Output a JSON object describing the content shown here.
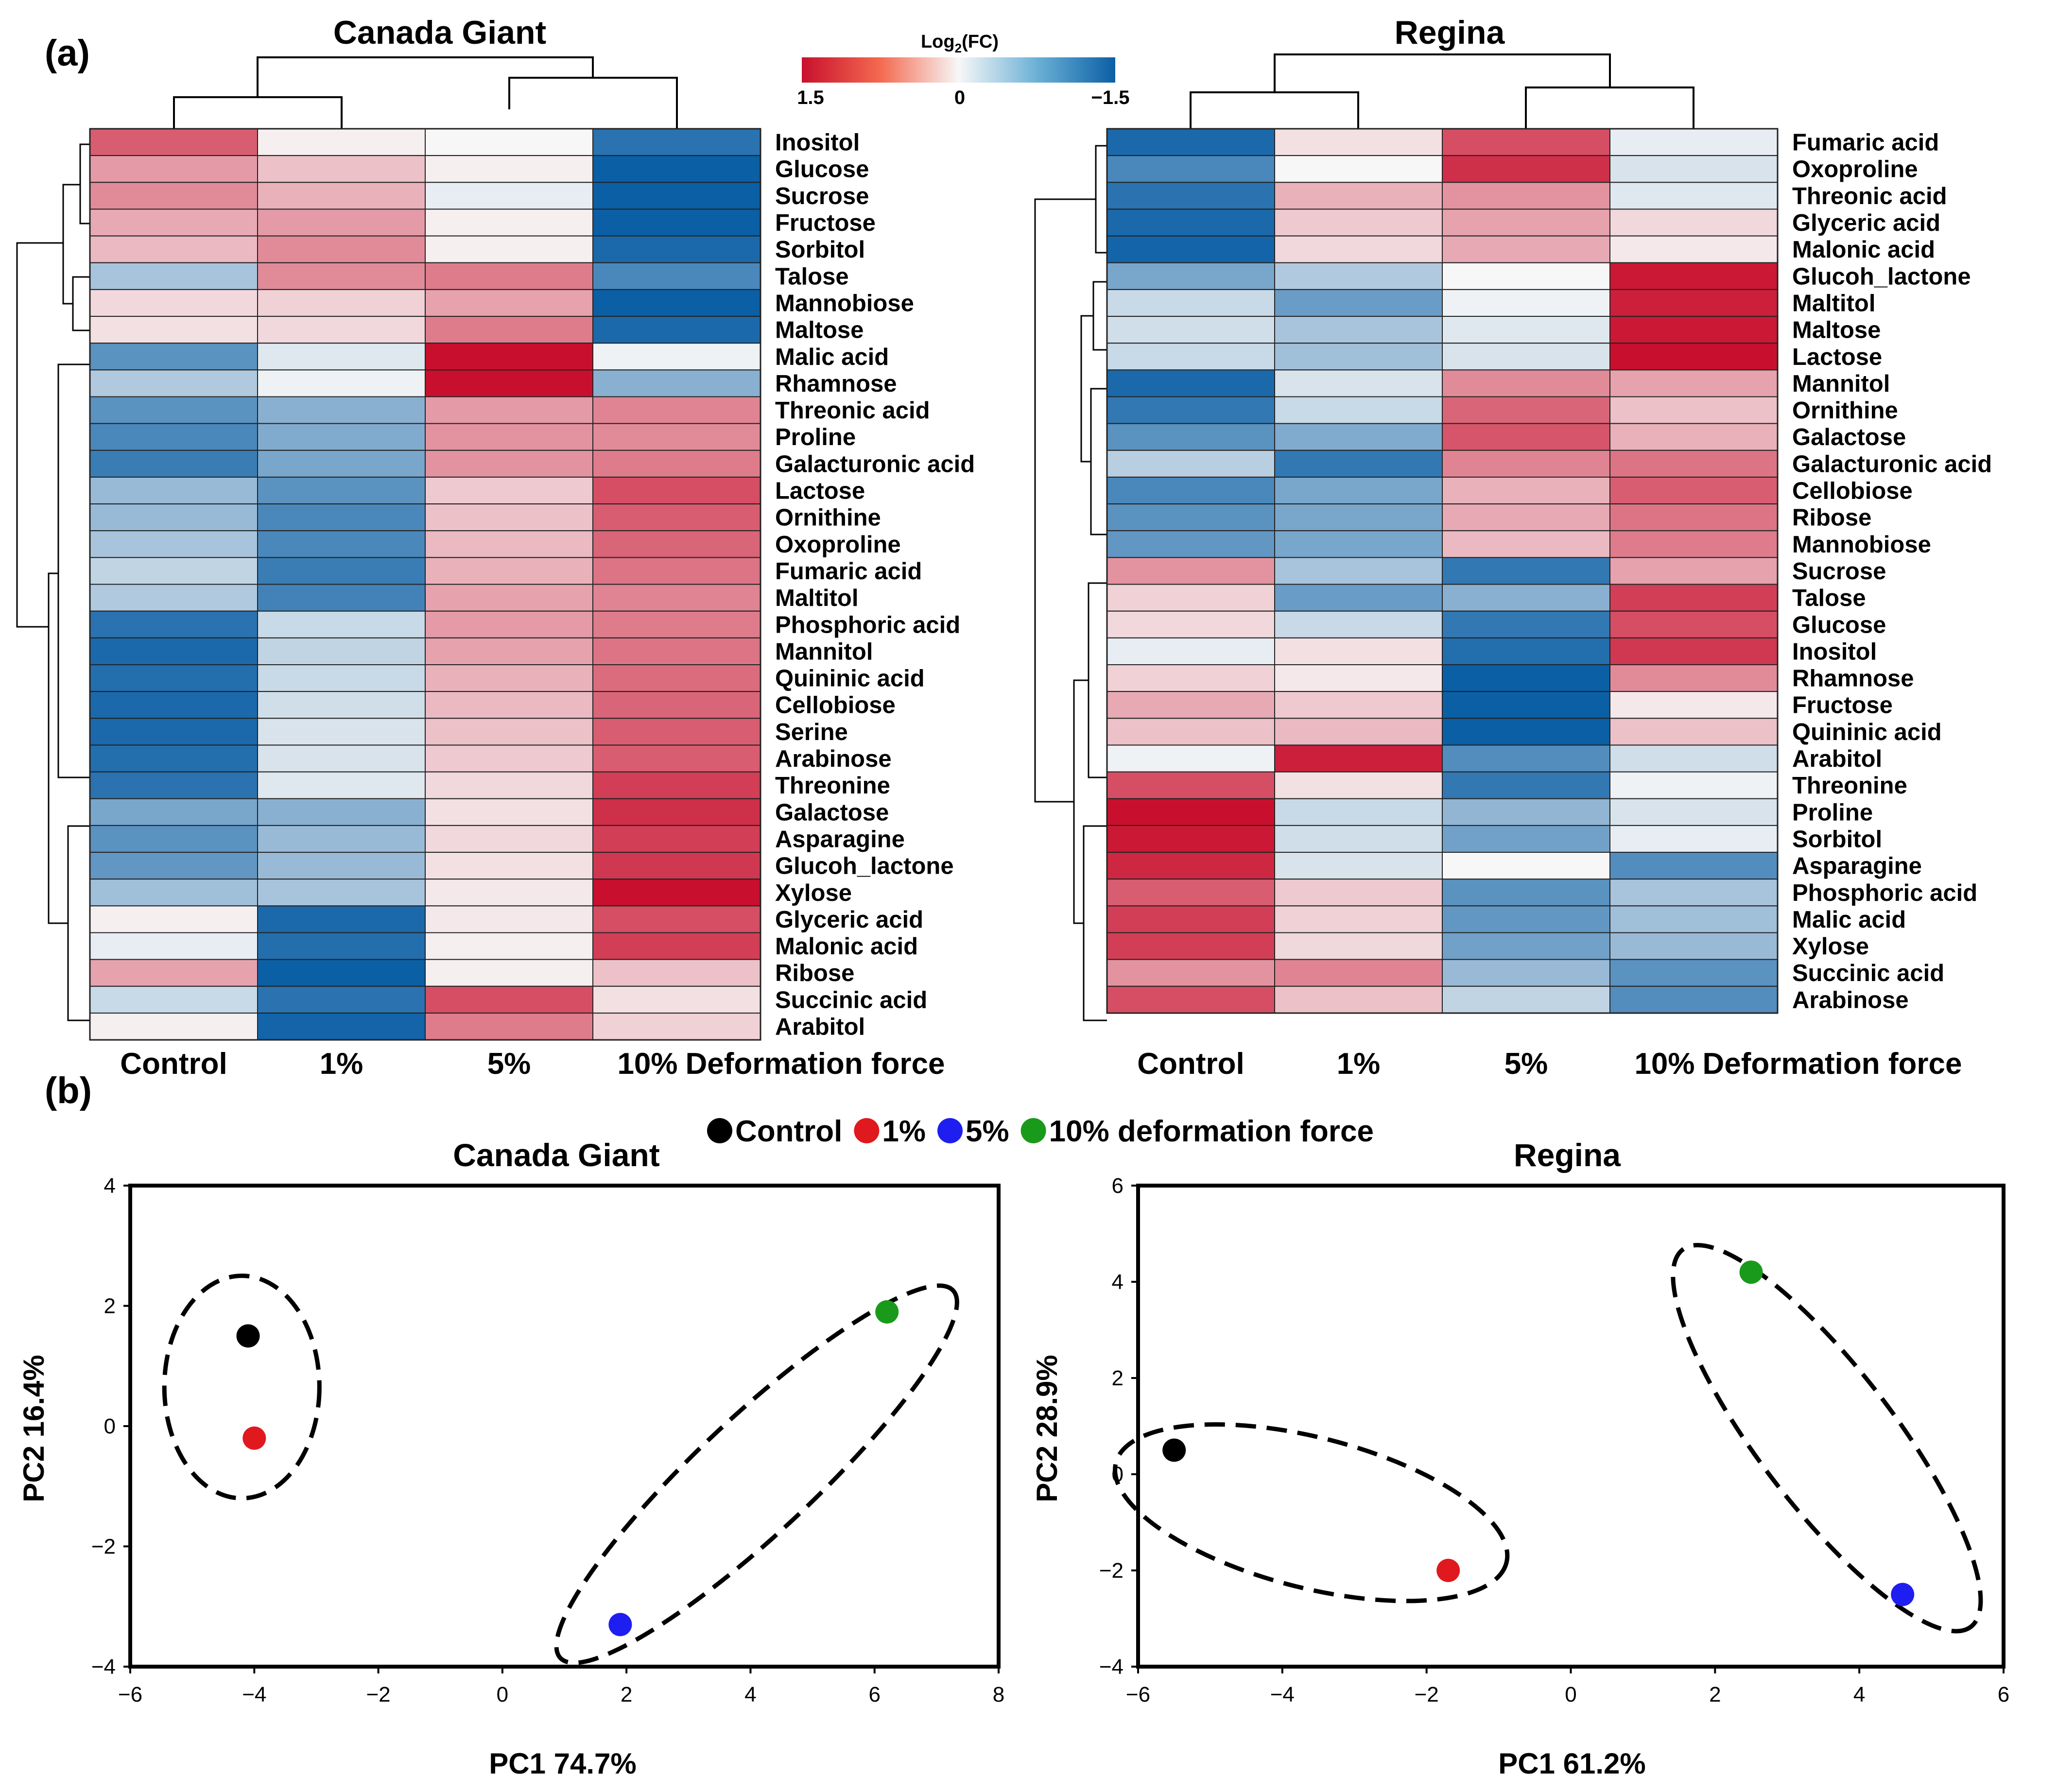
{
  "figure": {
    "panel_a_label": "(a)",
    "panel_b_label": "(b)",
    "colors": {
      "high": "#c8102e",
      "mid": "#f7f7f7",
      "low": "#0b5fa5"
    }
  },
  "chart_data": [
    {
      "type": "heatmap",
      "id": "heatmap_canada_giant",
      "title": "Canada Giant",
      "value_label": "Log2(FC)",
      "columns": [
        "Control",
        "1%",
        "5%",
        "10%"
      ],
      "x_axis_suffix": "Deformation force",
      "color_range": [
        1.5,
        -1.5
      ],
      "rows": [
        {
          "label": "Inositol",
          "values": [
            1.0,
            0.05,
            0.0,
            -1.3
          ]
        },
        {
          "label": "Glucose",
          "values": [
            0.6,
            0.35,
            0.05,
            -1.5
          ]
        },
        {
          "label": "Sucrose",
          "values": [
            0.7,
            0.45,
            -0.1,
            -1.5
          ]
        },
        {
          "label": "Fructose",
          "values": [
            0.5,
            0.6,
            0.05,
            -1.5
          ]
        },
        {
          "label": "Sorbitol",
          "values": [
            0.4,
            0.7,
            0.05,
            -1.4
          ]
        },
        {
          "label": "Talose",
          "values": [
            -0.5,
            0.7,
            0.8,
            -1.1
          ]
        },
        {
          "label": "Mannobiose",
          "values": [
            0.2,
            0.25,
            0.55,
            -1.5
          ]
        },
        {
          "label": "Maltose",
          "values": [
            0.15,
            0.2,
            0.8,
            -1.4
          ]
        },
        {
          "label": "Malic acid",
          "values": [
            -1.0,
            -0.15,
            1.5,
            -0.05
          ]
        },
        {
          "label": "Rhamnose",
          "values": [
            -0.45,
            -0.05,
            1.5,
            -0.7
          ]
        },
        {
          "label": "Threonic acid",
          "values": [
            -1.0,
            -0.7,
            0.6,
            0.75
          ]
        },
        {
          "label": "Proline",
          "values": [
            -1.1,
            -0.75,
            0.65,
            0.7
          ]
        },
        {
          "label": "Galacturonic acid",
          "values": [
            -1.2,
            -0.8,
            0.65,
            0.8
          ]
        },
        {
          "label": "Lactose",
          "values": [
            -0.6,
            -1.0,
            0.3,
            1.1
          ]
        },
        {
          "label": "Ornithine",
          "values": [
            -0.6,
            -1.1,
            0.35,
            1.0
          ]
        },
        {
          "label": "Oxoproline",
          "values": [
            -0.5,
            -1.1,
            0.4,
            0.95
          ]
        },
        {
          "label": "Fumaric acid",
          "values": [
            -0.35,
            -1.2,
            0.45,
            0.85
          ]
        },
        {
          "label": "Maltitol",
          "values": [
            -0.45,
            -1.15,
            0.55,
            0.75
          ]
        },
        {
          "label": "Phosphoric acid",
          "values": [
            -1.3,
            -0.3,
            0.6,
            0.8
          ]
        },
        {
          "label": "Mannitol",
          "values": [
            -1.4,
            -0.35,
            0.55,
            0.85
          ]
        },
        {
          "label": "Quininic acid",
          "values": [
            -1.35,
            -0.3,
            0.45,
            0.9
          ]
        },
        {
          "label": "Cellobiose",
          "values": [
            -1.4,
            -0.25,
            0.4,
            0.95
          ]
        },
        {
          "label": "Serine",
          "values": [
            -1.4,
            -0.2,
            0.35,
            1.0
          ]
        },
        {
          "label": "Arabinose",
          "values": [
            -1.35,
            -0.2,
            0.3,
            1.0
          ]
        },
        {
          "label": "Threonine",
          "values": [
            -1.3,
            -0.15,
            0.2,
            1.2
          ]
        },
        {
          "label": "Galactose",
          "values": [
            -0.8,
            -0.7,
            0.15,
            1.3
          ]
        },
        {
          "label": "Asparagine",
          "values": [
            -1.0,
            -0.6,
            0.2,
            1.2
          ]
        },
        {
          "label": "Glucoh_lactone",
          "values": [
            -0.95,
            -0.6,
            0.15,
            1.25
          ]
        },
        {
          "label": "Xylose",
          "values": [
            -0.55,
            -0.5,
            0.1,
            1.5
          ]
        },
        {
          "label": "Glyceric acid",
          "values": [
            0.05,
            -1.4,
            0.1,
            1.1
          ]
        },
        {
          "label": "Malonic acid",
          "values": [
            -0.1,
            -1.35,
            0.05,
            1.2
          ]
        },
        {
          "label": "Ribose",
          "values": [
            0.55,
            -1.5,
            0.05,
            0.35
          ]
        },
        {
          "label": "Succinic acid",
          "values": [
            -0.3,
            -1.3,
            1.1,
            0.15
          ]
        },
        {
          "label": "Arabitol",
          "values": [
            0.05,
            -1.45,
            0.8,
            0.25
          ]
        }
      ]
    },
    {
      "type": "heatmap",
      "id": "heatmap_regina",
      "title": "Regina",
      "value_label": "Log2(FC)",
      "columns": [
        "Control",
        "1%",
        "5%",
        "10%"
      ],
      "x_axis_suffix": "Deformation force",
      "color_range": [
        1.5,
        -1.5
      ],
      "rows": [
        {
          "label": "Fumaric acid",
          "values": [
            -1.4,
            0.15,
            1.1,
            -0.1
          ]
        },
        {
          "label": "Oxoproline",
          "values": [
            -1.1,
            0.0,
            1.3,
            -0.2
          ]
        },
        {
          "label": "Threonic acid",
          "values": [
            -1.3,
            0.45,
            0.65,
            -0.15
          ]
        },
        {
          "label": "Glyceric acid",
          "values": [
            -1.4,
            0.3,
            0.55,
            0.2
          ]
        },
        {
          "label": "Malonic acid",
          "values": [
            -1.45,
            0.2,
            0.5,
            0.1
          ]
        },
        {
          "label": "Glucoh_lactone",
          "values": [
            -0.8,
            -0.45,
            0.0,
            1.45
          ]
        },
        {
          "label": "Maltitol",
          "values": [
            -0.3,
            -0.9,
            -0.05,
            1.4
          ]
        },
        {
          "label": "Maltose",
          "values": [
            -0.25,
            -0.5,
            -0.15,
            1.45
          ]
        },
        {
          "label": "Lactose",
          "values": [
            -0.3,
            -0.55,
            -0.2,
            1.5
          ]
        },
        {
          "label": "Mannitol",
          "values": [
            -1.4,
            -0.2,
            0.7,
            0.55
          ]
        },
        {
          "label": "Ornithine",
          "values": [
            -1.25,
            -0.3,
            0.95,
            0.35
          ]
        },
        {
          "label": "Galactose",
          "values": [
            -1.0,
            -0.75,
            1.05,
            0.45
          ]
        },
        {
          "label": "Galacturonic acid",
          "values": [
            -0.4,
            -1.25,
            0.75,
            0.85
          ]
        },
        {
          "label": "Cellobiose",
          "values": [
            -1.1,
            -0.8,
            0.45,
            1.0
          ]
        },
        {
          "label": "Ribose",
          "values": [
            -1.0,
            -0.8,
            0.5,
            0.85
          ]
        },
        {
          "label": "Mannobiose",
          "values": [
            -0.95,
            -0.8,
            0.4,
            0.8
          ]
        },
        {
          "label": "Sucrose",
          "values": [
            0.65,
            -0.5,
            -1.25,
            0.55
          ]
        },
        {
          "label": "Talose",
          "values": [
            0.25,
            -0.9,
            -0.7,
            1.2
          ]
        },
        {
          "label": "Glucose",
          "values": [
            0.2,
            -0.3,
            -1.25,
            1.1
          ]
        },
        {
          "label": "Inositol",
          "values": [
            -0.1,
            0.15,
            -1.35,
            1.25
          ]
        },
        {
          "label": "Rhamnose",
          "values": [
            0.25,
            0.1,
            -1.5,
            0.7
          ]
        },
        {
          "label": "Fructose",
          "values": [
            0.5,
            0.3,
            -1.5,
            0.1
          ]
        },
        {
          "label": "Quininic acid",
          "values": [
            0.35,
            0.4,
            -1.5,
            0.35
          ]
        },
        {
          "label": "Arabitol",
          "values": [
            -0.05,
            1.4,
            -1.05,
            -0.25
          ]
        },
        {
          "label": "Threonine",
          "values": [
            1.1,
            0.15,
            -1.25,
            -0.05
          ]
        },
        {
          "label": "Proline",
          "values": [
            1.5,
            -0.3,
            -0.65,
            -0.2
          ]
        },
        {
          "label": "Sorbitol",
          "values": [
            1.45,
            -0.25,
            -0.85,
            -0.1
          ]
        },
        {
          "label": "Asparagine",
          "values": [
            1.35,
            -0.2,
            0.0,
            -1.05
          ]
        },
        {
          "label": "Phosphoric acid",
          "values": [
            1.0,
            0.3,
            -1.0,
            -0.5
          ]
        },
        {
          "label": "Malic acid",
          "values": [
            1.2,
            0.25,
            -0.95,
            -0.55
          ]
        },
        {
          "label": "Xylose",
          "values": [
            1.2,
            0.2,
            -0.85,
            -0.6
          ]
        },
        {
          "label": "Succinic acid",
          "values": [
            0.65,
            0.75,
            -0.6,
            -1.0
          ]
        },
        {
          "label": "Arabinose",
          "values": [
            1.1,
            0.35,
            -0.35,
            -1.05
          ]
        }
      ]
    },
    {
      "type": "scatter",
      "id": "pca_canada_giant",
      "title": "Canada Giant",
      "xlabel": "PC1 74.7%",
      "ylabel": "PC2 16.4%",
      "xlim": [
        -6,
        8
      ],
      "ylim": [
        -4,
        4
      ],
      "xticks": [
        -6,
        -4,
        -2,
        0,
        2,
        4,
        6,
        8
      ],
      "yticks": [
        -4,
        -2,
        0,
        2,
        4
      ],
      "xtick_labels": [
        "−6",
        "−4",
        "−2",
        "0",
        "2",
        "4",
        "6",
        "8"
      ],
      "ytick_labels": [
        "−4",
        "−2",
        "0",
        "2",
        "4"
      ],
      "points": [
        {
          "group": "Control",
          "x": -4.1,
          "y": 1.5
        },
        {
          "group": "1%",
          "x": -4.0,
          "y": -0.2
        },
        {
          "group": "5%",
          "x": 1.9,
          "y": -3.3
        },
        {
          "group": "10%",
          "x": 6.2,
          "y": 1.9
        }
      ],
      "ellipses": [
        {
          "cx": -4.2,
          "cy": 0.65,
          "rx": 1.25,
          "ry": 1.85,
          "angle_deg": 0
        },
        {
          "cx": 4.1,
          "cy": -0.8,
          "rx": 4.4,
          "ry": 0.95,
          "angle_deg": 44
        }
      ]
    },
    {
      "type": "scatter",
      "id": "pca_regina",
      "title": "Regina",
      "xlabel": "PC1 61.2%",
      "ylabel": "PC2 28.9%",
      "xlim": [
        -6,
        6
      ],
      "ylim": [
        -4,
        6
      ],
      "xticks": [
        -6,
        -4,
        -2,
        0,
        2,
        4,
        6
      ],
      "yticks": [
        -4,
        -2,
        0,
        2,
        4,
        6
      ],
      "xtick_labels": [
        "−6",
        "−4",
        "−2",
        "0",
        "2",
        "4",
        "6"
      ],
      "ytick_labels": [
        "−4",
        "−2",
        "0",
        "2",
        "4",
        "6"
      ],
      "points": [
        {
          "group": "Control",
          "x": -5.5,
          "y": 0.5
        },
        {
          "group": "1%",
          "x": -1.7,
          "y": -2.0
        },
        {
          "group": "5%",
          "x": 4.6,
          "y": -2.5
        },
        {
          "group": "10%",
          "x": 2.5,
          "y": 4.2
        }
      ],
      "ellipses": [
        {
          "cx": -3.6,
          "cy": -0.8,
          "rx": 2.9,
          "ry": 1.45,
          "angle_deg": -21
        },
        {
          "cx": 3.55,
          "cy": 0.75,
          "rx": 4.4,
          "ry": 1.0,
          "angle_deg": -63
        }
      ]
    }
  ],
  "legend": {
    "items": [
      {
        "label": "Control",
        "color": "#000000"
      },
      {
        "label": "1%",
        "color": "#e0191f"
      },
      {
        "label": "5%",
        "color": "#1e1ef0"
      },
      {
        "label": "10% deformation force",
        "color": "#1a9a1a"
      }
    ]
  },
  "colorbar": {
    "title": "Log2(FC)",
    "title_base": "Log",
    "title_sub": "2",
    "title_rest": "(FC)",
    "tick_labels": [
      "1.5",
      "0",
      "−1.5"
    ]
  }
}
